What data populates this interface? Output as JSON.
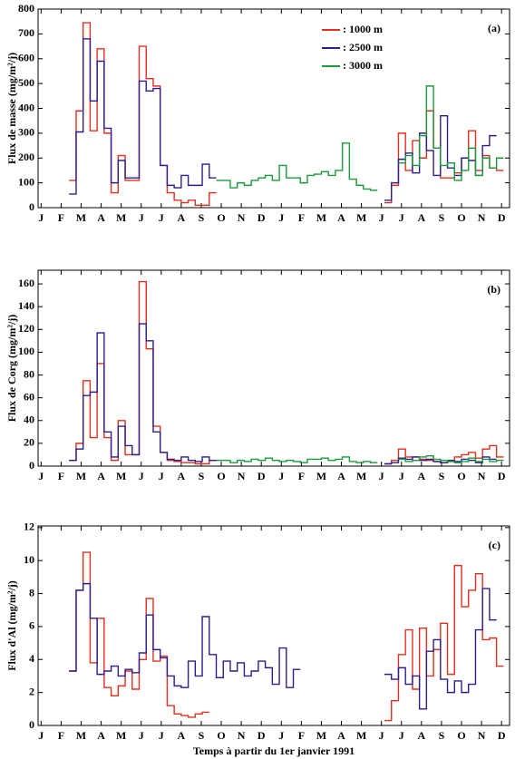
{
  "chart_data": [
    {
      "type": "line",
      "step": "post",
      "panel_label": "(a)",
      "ylabel": "Flux de masse (mg/m²/j)",
      "xlim": [
        -0.15,
        23.4
      ],
      "ylim": [
        0,
        800
      ],
      "yticks": [
        0,
        100,
        200,
        300,
        400,
        500,
        600,
        700,
        800
      ],
      "xticks": [
        {
          "value": 0,
          "label": "J"
        },
        {
          "value": 1,
          "label": "F"
        },
        {
          "value": 2,
          "label": "M"
        },
        {
          "value": 3,
          "label": "A"
        },
        {
          "value": 4,
          "label": "M"
        },
        {
          "value": 5,
          "label": "J"
        },
        {
          "value": 6,
          "label": "J"
        },
        {
          "value": 7,
          "label": "A"
        },
        {
          "value": 8,
          "label": "S"
        },
        {
          "value": 9,
          "label": "O"
        },
        {
          "value": 10,
          "label": "N"
        },
        {
          "value": 11,
          "label": "D"
        },
        {
          "value": 12,
          "label": "J"
        },
        {
          "value": 13,
          "label": "F"
        },
        {
          "value": 14,
          "label": "M"
        },
        {
          "value": 15,
          "label": "A"
        },
        {
          "value": 16,
          "label": "M"
        },
        {
          "value": 17,
          "label": "J"
        },
        {
          "value": 18,
          "label": "J"
        },
        {
          "value": 19,
          "label": "A"
        },
        {
          "value": 20,
          "label": "S"
        },
        {
          "value": 21,
          "label": "O"
        },
        {
          "value": 22,
          "label": "N"
        },
        {
          "value": 23,
          "label": "D"
        }
      ],
      "legend": "top-right",
      "series": [
        {
          "name": ": 1000 m",
          "color": "#e0301e",
          "x": [
            1.4,
            1.75,
            2.1,
            2.45,
            2.8,
            3.15,
            3.5,
            3.85,
            4.2,
            4.55,
            4.9,
            5.25,
            5.6,
            5.95,
            6.3,
            6.65,
            7,
            7.35,
            7.7,
            8.05,
            8.4,
            8.75,
            17.15,
            17.5,
            17.85,
            18.2,
            18.55,
            18.9,
            19.25,
            19.6,
            19.95,
            20.3,
            20.65,
            21,
            21.35,
            21.7,
            22.05,
            22.4,
            22.75,
            23.1
          ],
          "values": [
            110,
            390,
            745,
            310,
            640,
            300,
            60,
            210,
            110,
            110,
            650,
            520,
            490,
            170,
            60,
            30,
            20,
            30,
            10,
            10,
            60,
            null,
            20,
            90,
            300,
            150,
            270,
            200,
            390,
            240,
            120,
            120,
            140,
            200,
            310,
            150,
            210,
            160,
            150,
            null
          ]
        },
        {
          "name": ": 2500 m",
          "color": "#2a1f8f",
          "x": [
            1.4,
            1.75,
            2.1,
            2.45,
            2.8,
            3.15,
            3.5,
            3.85,
            4.2,
            4.55,
            4.9,
            5.25,
            5.6,
            5.95,
            6.3,
            6.65,
            7,
            7.35,
            7.7,
            8.05,
            8.4,
            8.75,
            17.15,
            17.5,
            17.85,
            18.2,
            18.55,
            18.9,
            19.25,
            19.6,
            19.95,
            20.3,
            20.65,
            21,
            21.35,
            21.7,
            22.05,
            22.4,
            22.75
          ],
          "values": [
            55,
            305,
            680,
            430,
            590,
            320,
            100,
            190,
            120,
            120,
            510,
            470,
            480,
            170,
            90,
            80,
            130,
            90,
            90,
            175,
            120,
            null,
            30,
            100,
            195,
            220,
            140,
            300,
            230,
            130,
            370,
            160,
            130,
            200,
            190,
            130,
            250,
            290,
            null
          ]
        },
        {
          "name": ": 3000 m",
          "color": "#1a9a3a",
          "x": [
            8.75,
            9.1,
            9.45,
            9.8,
            10.15,
            10.5,
            10.85,
            11.2,
            11.55,
            11.9,
            12.25,
            12.6,
            12.95,
            13.3,
            13.65,
            14,
            14.35,
            14.7,
            15.05,
            15.4,
            15.75,
            16.1,
            16.45,
            16.8,
            17.85,
            18.2,
            18.55,
            18.9,
            19.25,
            19.6,
            19.95,
            20.3,
            20.65,
            21,
            21.35,
            21.7,
            22.05,
            22.4,
            22.75,
            23.1
          ],
          "values": [
            110,
            110,
            80,
            100,
            90,
            110,
            120,
            130,
            110,
            170,
            120,
            120,
            100,
            130,
            135,
            145,
            130,
            150,
            260,
            115,
            90,
            75,
            70,
            null,
            180,
            210,
            170,
            290,
            490,
            240,
            170,
            180,
            110,
            150,
            240,
            130,
            200,
            160,
            200,
            null
          ]
        }
      ]
    },
    {
      "type": "line",
      "step": "post",
      "panel_label": "(b)",
      "ylabel": "Flux de Corg (mg/m²/j)",
      "xlim": [
        -0.15,
        23.4
      ],
      "ylim": [
        0,
        172
      ],
      "yticks": [
        0,
        20,
        40,
        60,
        80,
        100,
        120,
        140,
        160
      ],
      "xticks": [
        {
          "value": 0,
          "label": "J"
        },
        {
          "value": 1,
          "label": "F"
        },
        {
          "value": 2,
          "label": "M"
        },
        {
          "value": 3,
          "label": "A"
        },
        {
          "value": 4,
          "label": "M"
        },
        {
          "value": 5,
          "label": "J"
        },
        {
          "value": 6,
          "label": "J"
        },
        {
          "value": 7,
          "label": "A"
        },
        {
          "value": 8,
          "label": "S"
        },
        {
          "value": 9,
          "label": "O"
        },
        {
          "value": 10,
          "label": "N"
        },
        {
          "value": 11,
          "label": "D"
        },
        {
          "value": 12,
          "label": "J"
        },
        {
          "value": 13,
          "label": "F"
        },
        {
          "value": 14,
          "label": "M"
        },
        {
          "value": 15,
          "label": "A"
        },
        {
          "value": 16,
          "label": "M"
        },
        {
          "value": 17,
          "label": "J"
        },
        {
          "value": 18,
          "label": "J"
        },
        {
          "value": 19,
          "label": "A"
        },
        {
          "value": 20,
          "label": "S"
        },
        {
          "value": 21,
          "label": "O"
        },
        {
          "value": 22,
          "label": "N"
        },
        {
          "value": 23,
          "label": "D"
        }
      ],
      "series": [
        {
          "color": "#e0301e",
          "x": [
            1.4,
            1.75,
            2.1,
            2.45,
            2.8,
            3.15,
            3.5,
            3.85,
            4.2,
            4.55,
            4.9,
            5.25,
            5.6,
            5.95,
            6.3,
            6.65,
            7,
            7.35,
            7.7,
            8.05,
            8.4,
            8.75,
            17.15,
            17.5,
            17.85,
            18.2,
            18.55,
            18.9,
            19.25,
            19.6,
            19.95,
            20.3,
            20.65,
            21,
            21.35,
            21.7,
            22.05,
            22.4,
            22.75,
            23.1
          ],
          "values": [
            5,
            20,
            75,
            25,
            90,
            25,
            5,
            40,
            10,
            10,
            162,
            103,
            35,
            12,
            5,
            4,
            3,
            3,
            2,
            2,
            5,
            null,
            2,
            5,
            15,
            8,
            8,
            6,
            5,
            4,
            3,
            4,
            8,
            10,
            12,
            7,
            15,
            18,
            8,
            null
          ]
        },
        {
          "color": "#2a1f8f",
          "x": [
            1.4,
            1.75,
            2.1,
            2.45,
            2.8,
            3.15,
            3.5,
            3.85,
            4.2,
            4.55,
            4.9,
            5.25,
            5.6,
            5.95,
            6.3,
            6.65,
            7,
            7.35,
            7.7,
            8.05,
            8.4,
            8.75,
            17.15,
            17.5,
            17.85,
            18.2,
            18.55,
            18.9,
            19.25,
            19.6,
            19.95,
            20.3,
            20.65,
            21,
            21.35,
            21.7,
            22.05,
            22.4,
            22.75
          ],
          "values": [
            5,
            15,
            62,
            65,
            117,
            30,
            8,
            35,
            18,
            10,
            125,
            110,
            30,
            12,
            6,
            5,
            8,
            5,
            4,
            8,
            5,
            null,
            2,
            3,
            7,
            6,
            8,
            5,
            6,
            4,
            3,
            5,
            4,
            6,
            5,
            3,
            8,
            6,
            null
          ]
        },
        {
          "color": "#1a9a3a",
          "x": [
            8.75,
            9.1,
            9.45,
            9.8,
            10.15,
            10.5,
            10.85,
            11.2,
            11.55,
            11.9,
            12.25,
            12.6,
            12.95,
            13.3,
            13.65,
            14,
            14.35,
            14.7,
            15.05,
            15.4,
            15.75,
            16.1,
            16.45,
            16.8,
            17.85,
            18.2,
            18.55,
            18.9,
            19.25,
            19.6,
            19.95,
            20.3,
            20.65,
            21,
            21.35,
            21.7,
            22.05,
            22.4,
            22.75,
            23.1
          ],
          "values": [
            5,
            5,
            3,
            5,
            4,
            6,
            5,
            7,
            5,
            4,
            5,
            4,
            3,
            6,
            6,
            7,
            5,
            6,
            8,
            4,
            3,
            4,
            3,
            null,
            6,
            4,
            5,
            8,
            9,
            6,
            5,
            4,
            3,
            4,
            7,
            4,
            6,
            4,
            5,
            null
          ]
        }
      ]
    },
    {
      "type": "line",
      "step": "post",
      "panel_label": "(c)",
      "ylabel": "Flux d'Al (mg/m²/j)",
      "xlabel": "Temps à partir du 1er janvier 1991",
      "xlim": [
        -0.15,
        23.4
      ],
      "ylim": [
        0,
        12.1
      ],
      "yticks": [
        0,
        2,
        4,
        6,
        8,
        10,
        12
      ],
      "xticks": [
        {
          "value": 0,
          "label": "J"
        },
        {
          "value": 1,
          "label": "F"
        },
        {
          "value": 2,
          "label": "M"
        },
        {
          "value": 3,
          "label": "A"
        },
        {
          "value": 4,
          "label": "M"
        },
        {
          "value": 5,
          "label": "J"
        },
        {
          "value": 6,
          "label": "J"
        },
        {
          "value": 7,
          "label": "A"
        },
        {
          "value": 8,
          "label": "S"
        },
        {
          "value": 9,
          "label": "O"
        },
        {
          "value": 10,
          "label": "N"
        },
        {
          "value": 11,
          "label": "D"
        },
        {
          "value": 12,
          "label": "J"
        },
        {
          "value": 13,
          "label": "F"
        },
        {
          "value": 14,
          "label": "M"
        },
        {
          "value": 15,
          "label": "A"
        },
        {
          "value": 16,
          "label": "M"
        },
        {
          "value": 17,
          "label": "J"
        },
        {
          "value": 18,
          "label": "J"
        },
        {
          "value": 19,
          "label": "A"
        },
        {
          "value": 20,
          "label": "S"
        },
        {
          "value": 21,
          "label": "O"
        },
        {
          "value": 22,
          "label": "N"
        },
        {
          "value": 23,
          "label": "D"
        }
      ],
      "series": [
        {
          "color": "#e0301e",
          "x": [
            1.4,
            1.75,
            2.1,
            2.45,
            2.8,
            3.15,
            3.5,
            3.85,
            4.2,
            4.55,
            4.9,
            5.25,
            5.6,
            5.95,
            6.3,
            6.65,
            7,
            7.35,
            7.7,
            8.05,
            8.4,
            17.15,
            17.5,
            17.85,
            18.2,
            18.55,
            18.9,
            19.25,
            19.6,
            19.95,
            20.3,
            20.65,
            21,
            21.35,
            21.7,
            22.05,
            22.4,
            22.75,
            23.1
          ],
          "values": [
            3.3,
            8.2,
            10.5,
            3.8,
            6.5,
            2.3,
            1.8,
            2.4,
            3.3,
            2.2,
            4,
            7.7,
            3.9,
            4.2,
            1.2,
            0.7,
            0.6,
            0.5,
            0.7,
            0.8,
            null,
            0.3,
            1.5,
            4.3,
            5.8,
            2.2,
            5.9,
            3,
            4.6,
            6.2,
            3.1,
            9.7,
            7.2,
            8.2,
            9.2,
            5.2,
            5.3,
            3.6,
            null
          ]
        },
        {
          "color": "#2a1f8f",
          "x": [
            1.4,
            1.75,
            2.1,
            2.45,
            2.8,
            3.15,
            3.5,
            3.85,
            4.2,
            4.55,
            4.9,
            5.25,
            5.6,
            5.95,
            6.3,
            6.65,
            7,
            7.35,
            7.7,
            8.05,
            8.4,
            8.75,
            9.1,
            9.45,
            9.8,
            10.15,
            10.5,
            10.85,
            11.2,
            11.55,
            11.9,
            12.25,
            12.6,
            12.95,
            17.15,
            17.5,
            17.85,
            18.2,
            18.55,
            18.9,
            19.25,
            19.6,
            19.95,
            20.3,
            20.65,
            21,
            21.35,
            21.7,
            22.05,
            22.4,
            22.75
          ],
          "values": [
            3.3,
            8.2,
            8.6,
            6.5,
            3.1,
            3.3,
            3.6,
            3,
            3.4,
            3.2,
            4.4,
            6.7,
            4.6,
            4.1,
            3,
            2.4,
            2.3,
            3.9,
            3,
            6.6,
            4.3,
            2.9,
            3.9,
            3.3,
            3.8,
            3,
            3.3,
            3.9,
            3.5,
            2.5,
            4.7,
            2.3,
            3.4,
            null,
            3.1,
            2.8,
            3.5,
            2.5,
            3,
            1,
            4.5,
            5.2,
            2.8,
            2,
            2.7,
            2,
            2.5,
            5.8,
            8.3,
            6.4,
            null
          ]
        }
      ]
    }
  ]
}
